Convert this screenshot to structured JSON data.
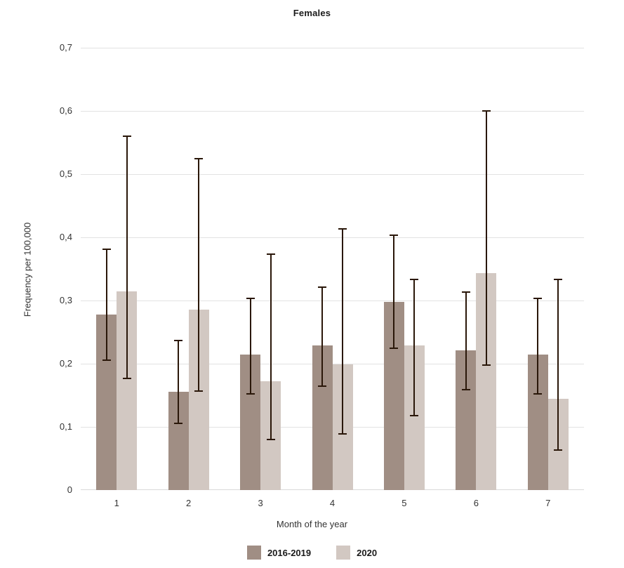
{
  "chart_data": {
    "type": "bar",
    "title": "Females",
    "xlabel": "Month of the year",
    "ylabel": "Frequency per 100,000",
    "categories": [
      "1",
      "2",
      "3",
      "4",
      "5",
      "6",
      "7"
    ],
    "ylim": [
      0,
      0.7
    ],
    "ytick_values": [
      0,
      0.1,
      0.2,
      0.3,
      0.4,
      0.5,
      0.6,
      0.7
    ],
    "ytick_labels": [
      "0",
      "0,1",
      "0,2",
      "0,3",
      "0,4",
      "0,5",
      "0,6",
      "0,7"
    ],
    "grid": true,
    "legend_position": "bottom",
    "background_color": "#ffffff",
    "gridline_color": "#e2e2e2",
    "axisline_color": "#d9d9d9",
    "error_bar_color": "#2a1709",
    "text_color": "#333333",
    "series": [
      {
        "name": "2016-2019",
        "color": "#a08e84",
        "values": [
          0.278,
          0.156,
          0.214,
          0.229,
          0.298,
          0.221,
          0.214
        ],
        "error_low": [
          0.204,
          0.104,
          0.151,
          0.163,
          0.223,
          0.158,
          0.151
        ],
        "error_high": [
          0.382,
          0.238,
          0.305,
          0.322,
          0.405,
          0.314,
          0.305
        ]
      },
      {
        "name": "2020",
        "color": "#d2c8c2",
        "values": [
          0.314,
          0.286,
          0.172,
          0.199,
          0.229,
          0.343,
          0.144
        ],
        "error_low": [
          0.176,
          0.155,
          0.079,
          0.088,
          0.117,
          0.197,
          0.062
        ],
        "error_high": [
          0.561,
          0.526,
          0.375,
          0.414,
          0.335,
          0.601,
          0.335
        ]
      }
    ]
  }
}
